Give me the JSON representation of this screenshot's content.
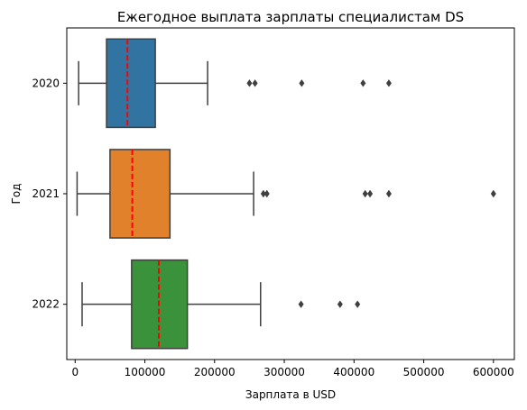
{
  "chart_data": {
    "type": "boxplot",
    "orientation": "horizontal",
    "title": "Ежегодное выплата зарплаты специалистам DS",
    "xlabel": "Зарплата в USD",
    "ylabel": "Год",
    "xlim": [
      -12000,
      630000
    ],
    "xticks": [
      0,
      100000,
      200000,
      300000,
      400000,
      500000,
      600000
    ],
    "xtick_labels": [
      "0",
      "100000",
      "200000",
      "300000",
      "400000",
      "500000",
      "600000"
    ],
    "grid": false,
    "legend": "none",
    "mean_line_color": "#ff0000",
    "series": [
      {
        "category": "2020",
        "color": "#3274a1",
        "whisker_low": 5000,
        "q1": 45000,
        "median_marker": 75000,
        "q3": 115000,
        "whisker_high": 190000,
        "outliers": [
          250000,
          258000,
          325000,
          413000,
          450000
        ]
      },
      {
        "category": "2021",
        "color": "#e1812c",
        "whisker_low": 2800,
        "q1": 50000,
        "median_marker": 82000,
        "q3": 136000,
        "whisker_high": 256000,
        "outliers": [
          270000,
          275000,
          416000,
          423000,
          450000,
          600000
        ]
      },
      {
        "category": "2022",
        "color": "#3a923a",
        "whisker_low": 10000,
        "q1": 81000,
        "median_marker": 120000,
        "q3": 161000,
        "whisker_high": 266000,
        "outliers": [
          324000,
          380000,
          405000
        ]
      }
    ]
  }
}
